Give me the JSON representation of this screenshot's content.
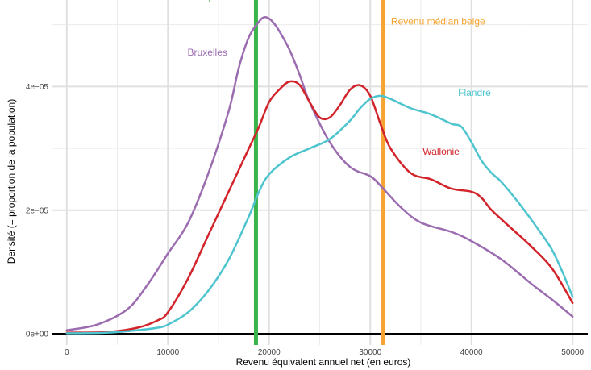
{
  "chart_data": {
    "type": "line",
    "title": "",
    "xlabel": "Revenu équivalent annuel net (en euros)",
    "ylabel": "Densité (= proportion de la population)",
    "xlim": [
      -1500,
      51500
    ],
    "ylim": [
      -1.8e-06,
      5.4e-05
    ],
    "x_ticks": [
      0,
      10000,
      20000,
      30000,
      40000,
      50000
    ],
    "x_tick_labels": [
      "0",
      "10000",
      "20000",
      "30000",
      "40000",
      "50000"
    ],
    "y_ticks": [
      0,
      2e-05,
      4e-05
    ],
    "y_tick_labels": [
      "0e+00",
      "2e−05",
      "4e−05"
    ],
    "grid": true,
    "legend": "none",
    "series": [
      {
        "name": "Bruxelles",
        "color": "#9b6cb0",
        "x": [
          0,
          3000,
          6000,
          8000,
          10000,
          12000,
          14000,
          16000,
          17000,
          18000,
          19000,
          19500,
          20000,
          20500,
          21000,
          22000,
          23000,
          24000,
          26000,
          28000,
          30000,
          31000,
          33000,
          35000,
          38000,
          40000,
          43000,
          46000,
          48000,
          50000
        ],
        "y": [
          6e-07,
          1.5e-06,
          4e-06,
          8e-06,
          1.3e-05,
          1.8e-05,
          2.6e-05,
          3.6e-05,
          4.3e-05,
          4.8e-05,
          5.05e-05,
          5.12e-05,
          5.1e-05,
          5.02e-05,
          4.9e-05,
          4.6e-05,
          4.2e-05,
          3.75e-05,
          3.1e-05,
          2.7e-05,
          2.55e-05,
          2.4e-05,
          2.05e-05,
          1.8e-05,
          1.65e-05,
          1.5e-05,
          1.2e-05,
          8e-06,
          5.5e-06,
          2.8e-06
        ]
      },
      {
        "name": "Wallonie",
        "color": "#d2232a",
        "x": [
          0,
          4000,
          7000,
          9000,
          10000,
          12000,
          14000,
          16000,
          18000,
          19000,
          20000,
          21000,
          22000,
          23000,
          24000,
          25000,
          26000,
          27000,
          28000,
          29000,
          30000,
          31000,
          32000,
          34000,
          36000,
          38000,
          40000,
          41000,
          42000,
          44000,
          46000,
          48000,
          50000
        ],
        "y": [
          2e-07,
          3e-07,
          1e-06,
          2.2e-06,
          3.5e-06,
          9e-06,
          1.6e-05,
          2.3e-05,
          3e-05,
          3.35e-05,
          3.75e-05,
          3.95e-05,
          4.08e-05,
          4.03e-05,
          3.75e-05,
          3.5e-05,
          3.5e-05,
          3.7e-05,
          3.95e-05,
          4.02e-05,
          3.85e-05,
          3.4e-05,
          3e-05,
          2.6e-05,
          2.5e-05,
          2.35e-05,
          2.3e-05,
          2.2e-05,
          2e-05,
          1.7e-05,
          1.4e-05,
          1.05e-05,
          5e-06
        ]
      },
      {
        "name": "Flandre",
        "color": "#4ec4cf",
        "x": [
          0,
          4000,
          7000,
          9000,
          10000,
          12000,
          14000,
          16000,
          18000,
          19000,
          20000,
          22000,
          24000,
          26000,
          28000,
          29000,
          30000,
          31000,
          32000,
          34000,
          36000,
          38000,
          39000,
          40000,
          41000,
          42000,
          43000,
          45000,
          47000,
          48000,
          49000,
          50000
        ],
        "y": [
          1e-07,
          2e-07,
          6e-07,
          1e-06,
          1.5e-06,
          3.5e-06,
          7e-06,
          1.2e-05,
          1.9e-05,
          2.3e-05,
          2.58e-05,
          2.85e-05,
          3e-05,
          3.15e-05,
          3.45e-05,
          3.65e-05,
          3.8e-05,
          3.85e-05,
          3.8e-05,
          3.65e-05,
          3.55e-05,
          3.4e-05,
          3.35e-05,
          3.1e-05,
          2.8e-05,
          2.6e-05,
          2.45e-05,
          2.05e-05,
          1.6e-05,
          1.35e-05,
          1e-05,
          6e-06
        ]
      }
    ],
    "vertical_lines": [
      {
        "name": "Seuil de pauvreté",
        "x": 18700,
        "color": "#3bb54a"
      },
      {
        "name": "Revenu médian belge",
        "x": 31300,
        "color": "#f5a431"
      }
    ],
    "annotations": [
      {
        "text": "Seuil de pauvreté",
        "x": 14000,
        "y": 5.4e-05,
        "color": "#3bb54a"
      },
      {
        "text": "Revenu médian belge",
        "x": 36700,
        "y": 5e-05,
        "color": "#f5a431"
      },
      {
        "text": "Bruxelles",
        "x": 13900,
        "y": 4.5e-05,
        "color": "#9b6cb0"
      },
      {
        "text": "Flandre",
        "x": 40300,
        "y": 3.85e-05,
        "color": "#4ec4cf"
      },
      {
        "text": "Wallonie",
        "x": 37000,
        "y": 2.9e-05,
        "color": "#d2232a"
      }
    ]
  }
}
